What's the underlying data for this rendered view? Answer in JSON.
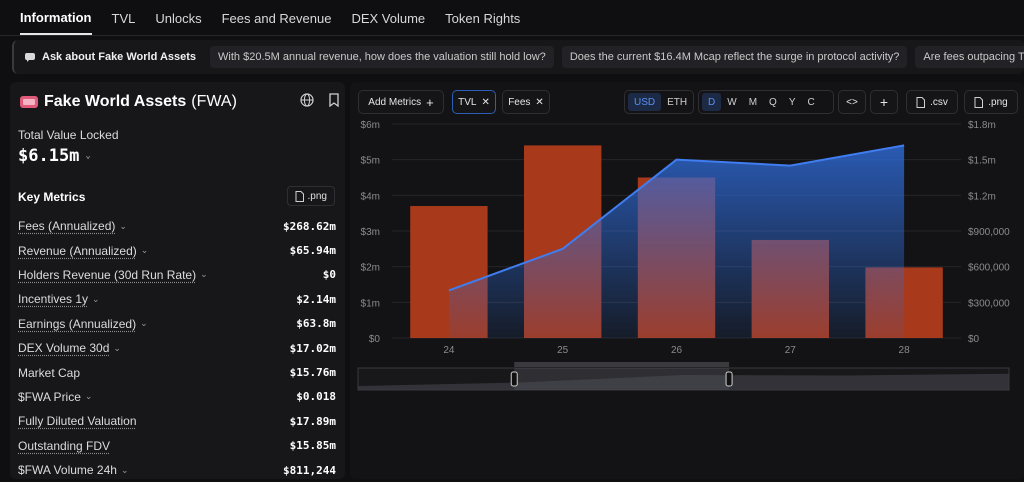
{
  "nav": {
    "tabs": [
      "Information",
      "TVL",
      "Unlocks",
      "Fees and Revenue",
      "DEX Volume",
      "Token Rights"
    ],
    "active": 0
  },
  "ask": {
    "label": "Ask about Fake World Assets",
    "chips": [
      "With $20.5M annual revenue, how does the valuation still hold low?",
      "Does the current $16.4M Mcap reflect the surge in protocol activity?",
      "Are fees outpacing TVL growth sugg"
    ]
  },
  "protocol": {
    "name": "Fake World Assets",
    "ticker": "(FWA)"
  },
  "tvl": {
    "label": "Total Value Locked",
    "value": "$6.15m"
  },
  "key_metrics": {
    "title": "Key Metrics",
    "png_label": ".png"
  },
  "metrics": [
    {
      "name": "Fees (Annualized)",
      "value": "$268.62m",
      "underline": true,
      "chevron": true
    },
    {
      "name": "Revenue (Annualized)",
      "value": "$65.94m",
      "underline": true,
      "chevron": true
    },
    {
      "name": "Holders Revenue (30d Run Rate)",
      "value": "$0",
      "underline": true,
      "chevron": true
    },
    {
      "name": "Incentives 1y",
      "value": "$2.14m",
      "underline": true,
      "chevron": true
    },
    {
      "name": "Earnings (Annualized)",
      "value": "$63.8m",
      "underline": true,
      "chevron": true
    },
    {
      "name": "DEX Volume 30d",
      "value": "$17.02m",
      "underline": true,
      "chevron": true
    },
    {
      "name": "Market Cap",
      "value": "$15.76m",
      "underline": false,
      "chevron": false
    },
    {
      "name": "$FWA Price",
      "value": "$0.018",
      "underline": false,
      "chevron": true
    },
    {
      "name": "Fully Diluted Valuation",
      "value": "$17.89m",
      "underline": true,
      "chevron": false
    },
    {
      "name": "Outstanding FDV",
      "value": "$15.85m",
      "underline": true,
      "chevron": false
    },
    {
      "name": "$FWA Volume 24h",
      "value": "$811,244",
      "underline": false,
      "chevron": true
    }
  ],
  "toolbar": {
    "add_metrics": "Add Metrics",
    "filters": [
      "TVL",
      "Fees"
    ],
    "currencies": [
      "USD",
      "ETH"
    ],
    "currency_selected": 0,
    "periods": [
      "D",
      "W",
      "M",
      "Q",
      "Y",
      "C"
    ],
    "period_selected": 0,
    "csv": ".csv",
    "png": ".png",
    "embed_icon": "code-icon",
    "plus_icon": "plus-icon"
  },
  "colors": {
    "tvl": "#2f6bd8",
    "fees": "#a8391a",
    "accent": "#5b8ff0"
  },
  "chart_data": {
    "type": "bar",
    "categories": [
      "24",
      "25",
      "26",
      "27",
      "28"
    ],
    "series": [
      {
        "name": "Fees",
        "type": "bar",
        "axis": "left",
        "values": [
          3700000,
          5400000,
          4500000,
          2750000,
          1980000
        ]
      },
      {
        "name": "TVL",
        "type": "area",
        "axis": "right",
        "values": [
          400000,
          750000,
          1500000,
          1450000,
          1620000
        ]
      }
    ],
    "y_left": {
      "ticks": [
        "$0",
        "$1m",
        "$2m",
        "$3m",
        "$4m",
        "$5m",
        "$6m"
      ],
      "range": [
        0,
        6000000
      ]
    },
    "y_right": {
      "ticks": [
        "$0",
        "$300,000",
        "$600,000",
        "$900,000",
        "$1.2m",
        "$1.5m",
        "$1.8m"
      ],
      "range": [
        0,
        1800000
      ]
    },
    "grid": true,
    "brush": {
      "start": 0.24,
      "end": 0.57
    }
  }
}
